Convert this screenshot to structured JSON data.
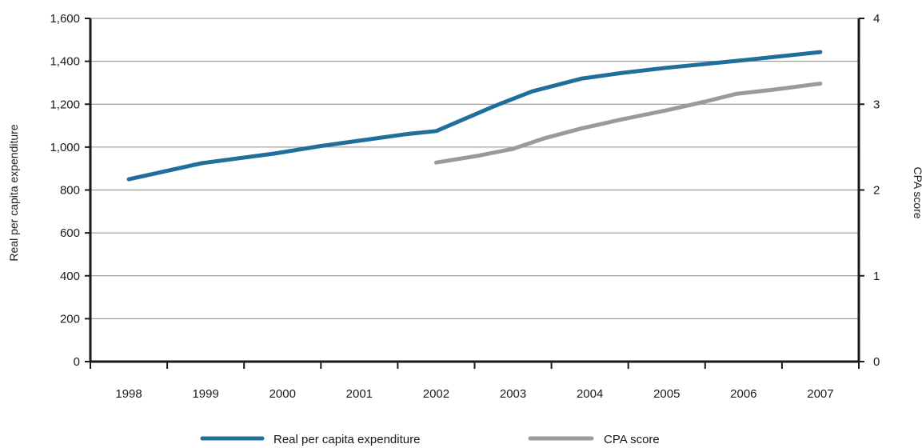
{
  "chart_data": {
    "type": "line",
    "title": "",
    "x": [
      "1998",
      "1999",
      "2000",
      "2001",
      "2002",
      "2003",
      "2004",
      "2005",
      "2006",
      "2007"
    ],
    "y_left": {
      "label": "Real per capita expenditure",
      "ticks": [
        "0",
        "200",
        "400",
        "600",
        "800",
        "1,000",
        "1,200",
        "1,400",
        "1,600"
      ],
      "tick_values": [
        0,
        200,
        400,
        600,
        800,
        1000,
        1200,
        1400,
        1600
      ],
      "range": [
        0,
        1600
      ]
    },
    "y_right": {
      "label": "CPA score",
      "ticks": [
        "0",
        "1",
        "2",
        "3",
        "4"
      ],
      "tick_values": [
        0,
        1,
        2,
        3,
        4
      ],
      "range": [
        0,
        4
      ]
    },
    "grid": true,
    "legend_position": "bottom",
    "series": [
      {
        "name": "Real per capita expenditure",
        "axis": "left",
        "color": "#1f6e9c",
        "points": [
          {
            "x": 1998.0,
            "y": 850
          },
          {
            "x": 1998.95,
            "y": 925
          },
          {
            "x": 1999.9,
            "y": 970
          },
          {
            "x": 2000.5,
            "y": 1005
          },
          {
            "x": 2001.1,
            "y": 1035
          },
          {
            "x": 2001.6,
            "y": 1060
          },
          {
            "x": 2002.0,
            "y": 1075
          },
          {
            "x": 2002.75,
            "y": 1190
          },
          {
            "x": 2003.25,
            "y": 1260
          },
          {
            "x": 2003.9,
            "y": 1320
          },
          {
            "x": 2004.4,
            "y": 1345
          },
          {
            "x": 2005.0,
            "y": 1370
          },
          {
            "x": 2006.0,
            "y": 1405
          },
          {
            "x": 2007.0,
            "y": 1443
          }
        ]
      },
      {
        "name": "CPA score",
        "axis": "right",
        "color": "#999a9c",
        "points": [
          {
            "x": 2002.0,
            "y": 2.32
          },
          {
            "x": 2002.55,
            "y": 2.4
          },
          {
            "x": 2003.0,
            "y": 2.48
          },
          {
            "x": 2003.4,
            "y": 2.6
          },
          {
            "x": 2003.9,
            "y": 2.72
          },
          {
            "x": 2004.4,
            "y": 2.82
          },
          {
            "x": 2005.0,
            "y": 2.93
          },
          {
            "x": 2005.5,
            "y": 3.03
          },
          {
            "x": 2005.9,
            "y": 3.12
          },
          {
            "x": 2006.4,
            "y": 3.17
          },
          {
            "x": 2007.0,
            "y": 3.24
          }
        ]
      }
    ]
  }
}
